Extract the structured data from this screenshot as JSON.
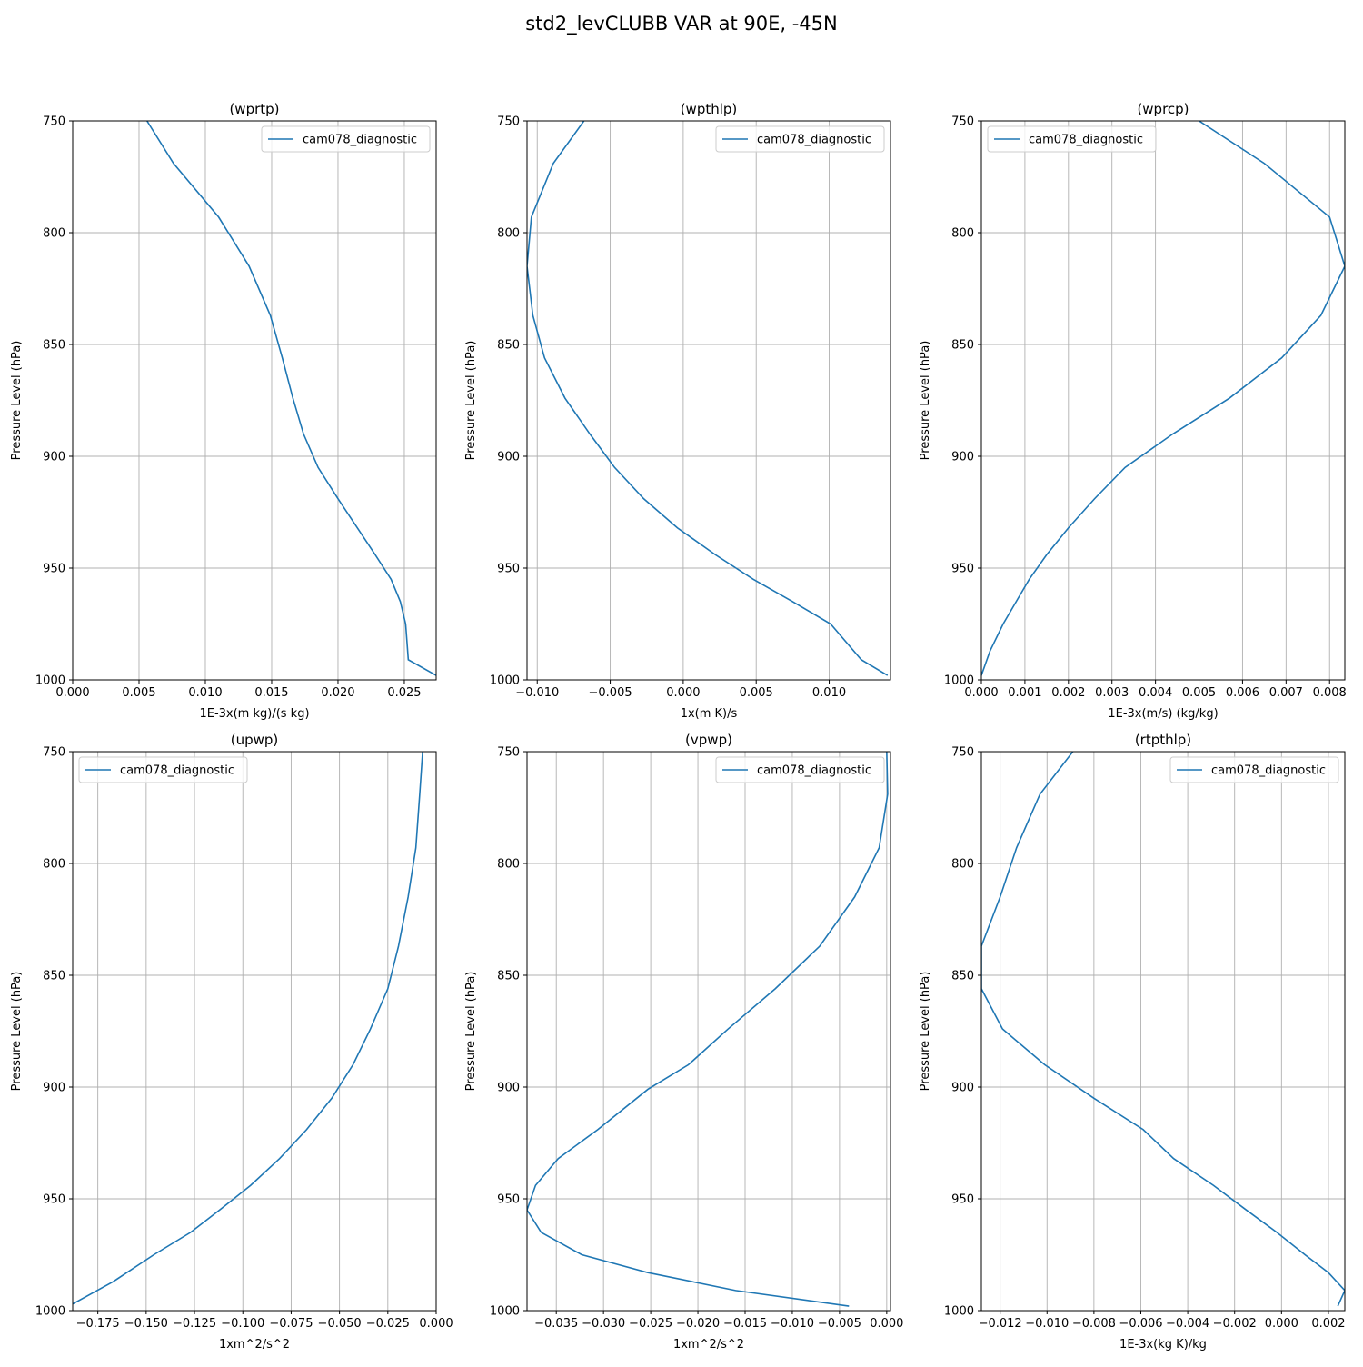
{
  "title": "std2_levCLUBB VAR at 90E, -45N",
  "colors": {
    "series": "#1f77b4",
    "grid": "#b0b0b0",
    "axes": "#000000"
  },
  "chart_data": [
    {
      "type": "line",
      "title": "(wprtp)",
      "xlabel": "1E-3x(m kg)/(s kg)",
      "ylabel": "Pressure Level (hPa)",
      "xlim": [
        0.0,
        0.0274
      ],
      "ylim": [
        1000,
        750
      ],
      "xticks": [
        0.0,
        0.005,
        0.01,
        0.015,
        0.02,
        0.025
      ],
      "xtick_labels": [
        "0.000",
        "0.005",
        "0.010",
        "0.015",
        "0.020",
        "0.025"
      ],
      "yticks": [
        750,
        800,
        850,
        900,
        950,
        1000
      ],
      "ytick_labels": [
        "750",
        "800",
        "850",
        "900",
        "950",
        "1000"
      ],
      "grid": true,
      "legend": "upper right",
      "series": [
        {
          "name": "cam078_diagnostic",
          "x": [
            0.0056,
            0.0076,
            0.011,
            0.0133,
            0.0149,
            0.0158,
            0.0166,
            0.0174,
            0.0185,
            0.02,
            0.0228,
            0.024,
            0.0247,
            0.0251,
            0.0252,
            0.0253,
            0.0274
          ],
          "y": [
            750,
            769,
            793,
            815,
            837,
            856,
            874,
            890,
            905,
            919,
            944,
            955,
            965,
            975,
            983,
            991,
            998
          ]
        }
      ]
    },
    {
      "type": "line",
      "title": "(wpthlp)",
      "xlabel": "1x(m K)/s",
      "ylabel": "Pressure Level (hPa)",
      "xlim": [
        -0.0107,
        0.0142
      ],
      "ylim": [
        1000,
        750
      ],
      "xticks": [
        -0.01,
        -0.005,
        0.0,
        0.005,
        0.01
      ],
      "xtick_labels": [
        "−0.010",
        "−0.005",
        "0.000",
        "0.005",
        "0.010"
      ],
      "yticks": [
        750,
        800,
        850,
        900,
        950,
        1000
      ],
      "ytick_labels": [
        "750",
        "800",
        "850",
        "900",
        "950",
        "1000"
      ],
      "grid": true,
      "legend": "upper right",
      "series": [
        {
          "name": "cam078_diagnostic",
          "x": [
            -0.0068,
            -0.0089,
            -0.0104,
            -0.0107,
            -0.0103,
            -0.0095,
            -0.0081,
            -0.0064,
            -0.0047,
            -0.0027,
            -0.0004,
            0.0022,
            0.0048,
            0.0075,
            0.0101,
            0.0122,
            0.014
          ],
          "y": [
            750,
            769,
            793,
            815,
            837,
            856,
            874,
            890,
            905,
            919,
            932,
            944,
            955,
            965,
            975,
            991,
            998
          ]
        }
      ]
    },
    {
      "type": "line",
      "title": "(wprcp)",
      "xlabel": "1E-3x(m/s) (kg/kg)",
      "ylabel": "Pressure Level (hPa)",
      "xlim": [
        0.0,
        0.00835
      ],
      "ylim": [
        1000,
        750
      ],
      "xticks": [
        0.0,
        0.001,
        0.002,
        0.003,
        0.004,
        0.005,
        0.006,
        0.007,
        0.008
      ],
      "xtick_labels": [
        "0.000",
        "0.001",
        "0.002",
        "0.003",
        "0.004",
        "0.005",
        "0.006",
        "0.007",
        "0.008"
      ],
      "yticks": [
        750,
        800,
        850,
        900,
        950,
        1000
      ],
      "ytick_labels": [
        "750",
        "800",
        "850",
        "900",
        "950",
        "1000"
      ],
      "grid": true,
      "legend": "upper left",
      "series": [
        {
          "name": "cam078_diagnostic",
          "x": [
            0.005,
            0.0065,
            0.008,
            0.00835,
            0.0078,
            0.0069,
            0.0057,
            0.0044,
            0.0033,
            0.0026,
            0.002,
            0.0015,
            0.0011,
            0.0008,
            0.0005,
            0.0002,
            0.0
          ],
          "y": [
            750,
            769,
            793,
            815,
            837,
            856,
            874,
            890,
            905,
            919,
            932,
            944,
            955,
            965,
            975,
            987,
            998
          ]
        }
      ]
    },
    {
      "type": "line",
      "title": "(upwp)",
      "xlabel": "1xm^2/s^2",
      "ylabel": "Pressure Level (hPa)",
      "xlim": [
        -0.188,
        0.0
      ],
      "ylim": [
        1000,
        750
      ],
      "xticks": [
        -0.175,
        -0.15,
        -0.125,
        -0.1,
        -0.075,
        -0.05,
        -0.025,
        0.0
      ],
      "xtick_labels": [
        "−0.175",
        "−0.150",
        "−0.125",
        "−0.100",
        "−0.075",
        "−0.050",
        "−0.025",
        "0.000"
      ],
      "yticks": [
        750,
        800,
        850,
        900,
        950,
        1000
      ],
      "ytick_labels": [
        "750",
        "800",
        "850",
        "900",
        "950",
        "1000"
      ],
      "grid": true,
      "legend": "upper left",
      "series": [
        {
          "name": "cam078_diagnostic",
          "x": [
            -0.007,
            -0.0085,
            -0.0105,
            -0.0145,
            -0.0195,
            -0.025,
            -0.034,
            -0.043,
            -0.054,
            -0.067,
            -0.081,
            -0.096,
            -0.112,
            -0.127,
            -0.146,
            -0.167,
            -0.188
          ],
          "y": [
            750,
            769,
            793,
            815,
            837,
            856,
            874,
            890,
            905,
            919,
            932,
            944,
            955,
            965,
            975,
            987,
            997
          ]
        }
      ]
    },
    {
      "type": "line",
      "title": "(vpwp)",
      "xlabel": "1xm^2/s^2",
      "ylabel": "Pressure Level (hPa)",
      "xlim": [
        -0.0381,
        0.0004
      ],
      "ylim": [
        1000,
        750
      ],
      "xticks": [
        -0.035,
        -0.03,
        -0.025,
        -0.02,
        -0.015,
        -0.01,
        -0.005,
        0.0
      ],
      "xtick_labels": [
        "−0.035",
        "−0.030",
        "−0.025",
        "−0.020",
        "−0.015",
        "−0.010",
        "−0.005",
        "0.000"
      ],
      "yticks": [
        750,
        800,
        850,
        900,
        950,
        1000
      ],
      "ytick_labels": [
        "750",
        "800",
        "850",
        "900",
        "950",
        "1000"
      ],
      "grid": true,
      "legend": "upper right",
      "series": [
        {
          "name": "cam078_diagnostic",
          "x": [
            0.0,
            0.0001,
            -0.0008,
            -0.0034,
            -0.0071,
            -0.0118,
            -0.0168,
            -0.021,
            -0.0253,
            -0.0306,
            -0.0348,
            -0.0372,
            -0.0381,
            -0.0366,
            -0.0323,
            -0.0253,
            -0.016,
            -0.004
          ],
          "y": [
            750,
            769,
            793,
            815,
            837,
            856,
            874,
            890,
            901,
            919,
            932,
            944,
            955,
            965,
            975,
            983,
            991,
            998
          ]
        }
      ]
    },
    {
      "type": "line",
      "title": "(rtpthlp)",
      "xlabel": "1E-3x(kg K)/kg",
      "ylabel": "Pressure Level (hPa)",
      "xlim": [
        -0.0128,
        0.0027
      ],
      "ylim": [
        1000,
        750
      ],
      "xticks": [
        -0.012,
        -0.01,
        -0.008,
        -0.006,
        -0.004,
        -0.002,
        0.0,
        0.002
      ],
      "xtick_labels": [
        "−0.012",
        "−0.010",
        "−0.008",
        "−0.006",
        "−0.004",
        "−0.002",
        "0.000",
        "0.002"
      ],
      "yticks": [
        750,
        800,
        850,
        900,
        950,
        1000
      ],
      "ytick_labels": [
        "750",
        "800",
        "850",
        "900",
        "950",
        "1000"
      ],
      "grid": true,
      "legend": "upper right",
      "series": [
        {
          "name": "cam078_diagnostic",
          "x": [
            -0.0089,
            -0.0103,
            -0.0113,
            -0.012,
            -0.0128,
            -0.0128,
            -0.0119,
            -0.0101,
            -0.008,
            -0.0059,
            -0.0046,
            -0.0029,
            -0.0015,
            -0.0002,
            0.001,
            0.002,
            0.0027,
            0.0024
          ],
          "y": [
            750,
            769,
            793,
            815,
            837,
            856,
            874,
            890,
            905,
            919,
            932,
            944,
            955,
            965,
            975,
            983,
            991,
            998
          ]
        }
      ]
    }
  ]
}
